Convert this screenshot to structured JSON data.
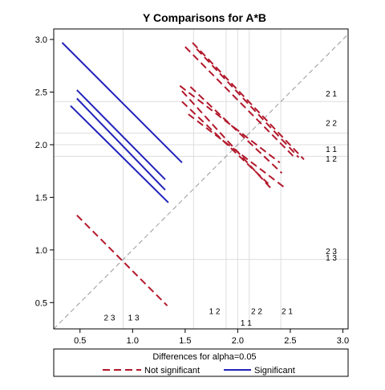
{
  "chart_data": {
    "type": "line",
    "title": "Y Comparisons for A*B",
    "xlim": [
      0.25,
      3.05
    ],
    "ylim": [
      0.25,
      3.1
    ],
    "xticks": [
      0.5,
      1.0,
      1.5,
      2.0,
      2.5,
      3.0
    ],
    "yticks": [
      0.5,
      1.0,
      1.5,
      2.0,
      2.5,
      3.0
    ],
    "tick_labels_x": [
      "0.5",
      "1.0",
      "1.5",
      "2.0",
      "2.5",
      "3.0"
    ],
    "tick_labels_y": [
      "0.5",
      "1.0",
      "1.5",
      "2.0",
      "2.5",
      "3.0"
    ],
    "reference_x": [
      0.91,
      1.58,
      1.89,
      2.0,
      2.11,
      2.41
    ],
    "reference_y": [
      0.91,
      1.89,
      2.0,
      2.11,
      2.41
    ],
    "diagonal": {
      "from": [
        0.25,
        0.25
      ],
      "to": [
        3.05,
        3.05
      ],
      "color": "#999999"
    },
    "legend": {
      "title": "Differences for alpha=0.05",
      "position": "bottom",
      "entries": [
        {
          "label": "Not significant",
          "style": "dashed",
          "color": "#b2182b"
        },
        {
          "label": "Significant",
          "style": "solid",
          "color": "#2222bb"
        }
      ]
    },
    "series": [
      {
        "label": "Not significant",
        "style": "dashed",
        "color": "#b2182b",
        "segments": [
          [
            [
              1.47,
              2.51
            ],
            [
              2.33,
              1.57
            ]
          ],
          [
            [
              1.47,
              2.41
            ],
            [
              2.29,
              1.63
            ]
          ],
          [
            [
              1.5,
              2.93
            ],
            [
              2.53,
              1.89
            ]
          ],
          [
            [
              1.53,
              2.29
            ],
            [
              2.45,
              1.59
            ]
          ],
          [
            [
              1.57,
              2.97
            ],
            [
              2.63,
              1.86
            ]
          ],
          [
            [
              1.61,
              2.91
            ],
            [
              2.58,
              1.88
            ]
          ],
          [
            [
              1.55,
              2.55
            ],
            [
              2.42,
              1.73
            ]
          ],
          [
            [
              1.45,
              2.56
            ],
            [
              2.4,
              1.83
            ]
          ],
          [
            [
              0.47,
              1.33
            ],
            [
              1.33,
              0.47
            ]
          ]
        ]
      },
      {
        "label": "Significant",
        "style": "solid",
        "color": "#2222bb",
        "segments": [
          [
            [
              0.33,
              2.97
            ],
            [
              1.47,
              1.83
            ]
          ],
          [
            [
              0.47,
              2.52
            ],
            [
              1.31,
              1.67
            ]
          ],
          [
            [
              0.47,
              2.44
            ],
            [
              1.31,
              1.57
            ]
          ],
          [
            [
              0.41,
              2.37
            ],
            [
              1.34,
              1.45
            ]
          ]
        ]
      }
    ],
    "annotations": [
      {
        "text": "2 1",
        "x": 2.89,
        "y": 2.46
      },
      {
        "text": "2 2",
        "x": 2.89,
        "y": 2.18
      },
      {
        "text": "1 1",
        "x": 2.89,
        "y": 1.93
      },
      {
        "text": "1 2",
        "x": 2.89,
        "y": 1.84
      },
      {
        "text": "2 3",
        "x": 2.89,
        "y": 0.96
      },
      {
        "text": "1 3",
        "x": 2.89,
        "y": 0.9
      },
      {
        "text": "2 3",
        "x": 0.78,
        "y": 0.33
      },
      {
        "text": "1 3",
        "x": 1.01,
        "y": 0.33
      },
      {
        "text": "1 2",
        "x": 1.78,
        "y": 0.39
      },
      {
        "text": "2 2",
        "x": 2.18,
        "y": 0.39
      },
      {
        "text": "2 1",
        "x": 2.47,
        "y": 0.39
      },
      {
        "text": "1 1",
        "x": 2.08,
        "y": 0.28
      }
    ]
  }
}
